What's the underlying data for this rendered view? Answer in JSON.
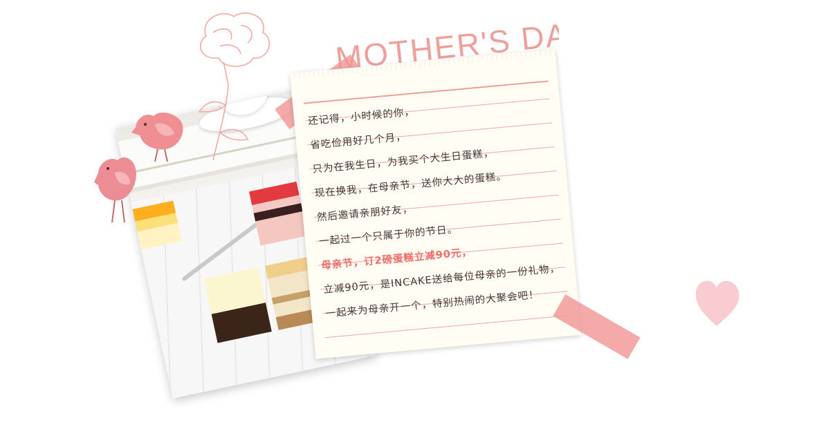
{
  "title": "MOTHER'S DAY",
  "note": {
    "lines": [
      {
        "text": "还记得，小时候的你，",
        "highlight": false
      },
      {
        "text": "省吃俭用好几个月，",
        "highlight": false
      },
      {
        "text": "只为在我生日，为我买个大生日蛋糕，",
        "highlight": false
      },
      {
        "text": "现在换我，在母亲节，送你大大的蛋糕。",
        "highlight": false
      },
      {
        "text": "然后邀请亲朋好友，",
        "highlight": false
      },
      {
        "text": "一起过一个只属于你的节日。",
        "highlight": false
      },
      {
        "text": "母亲节，订2磅蛋糕立减90元，",
        "highlight": true
      },
      {
        "text": "立减90元，是INCAKE送给每位母亲的一份礼物，",
        "highlight": false
      },
      {
        "text": "一起来为母亲开一个，特别热闹的大聚会吧！",
        "highlight": false
      }
    ]
  },
  "colors": {
    "accent": "#f0a09a",
    "highlight_text": "#ee6f6a",
    "body_text": "#3b3b3b",
    "paper": "#fffdf4",
    "tape": "#f09796"
  },
  "decorations": [
    "carnation-icon",
    "bird-icon",
    "bird-icon",
    "heart-icon",
    "tape",
    "tape"
  ]
}
